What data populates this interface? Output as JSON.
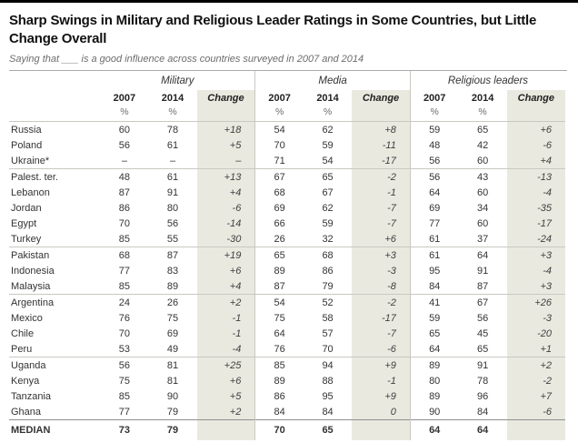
{
  "chart_data": {
    "type": "table",
    "title": "Sharp Swings in Military and Religious Leader Ratings in Some Countries, but Little Change Overall",
    "subtitle": "Saying that ___ is a good influence across countries surveyed in 2007 and 2014",
    "column_groups": [
      {
        "label": "Military"
      },
      {
        "label": "Media"
      },
      {
        "label": "Religious leaders"
      }
    ],
    "sub_columns": [
      "2007",
      "2014",
      "Change"
    ],
    "unit": "%",
    "rows": [
      {
        "country": "Russia",
        "section_start": false,
        "values": [
          "60",
          "78",
          "+18",
          "54",
          "62",
          "+8",
          "59",
          "65",
          "+6"
        ]
      },
      {
        "country": "Poland",
        "section_start": false,
        "values": [
          "56",
          "61",
          "+5",
          "70",
          "59",
          "-11",
          "48",
          "42",
          "-6"
        ]
      },
      {
        "country": "Ukraine*",
        "section_start": false,
        "values": [
          "–",
          "–",
          "–",
          "71",
          "54",
          "-17",
          "56",
          "60",
          "+4"
        ]
      },
      {
        "country": "Palest. ter.",
        "section_start": true,
        "values": [
          "48",
          "61",
          "+13",
          "67",
          "65",
          "-2",
          "56",
          "43",
          "-13"
        ]
      },
      {
        "country": "Lebanon",
        "section_start": false,
        "values": [
          "87",
          "91",
          "+4",
          "68",
          "67",
          "-1",
          "64",
          "60",
          "-4"
        ]
      },
      {
        "country": "Jordan",
        "section_start": false,
        "values": [
          "86",
          "80",
          "-6",
          "69",
          "62",
          "-7",
          "69",
          "34",
          "-35"
        ]
      },
      {
        "country": "Egypt",
        "section_start": false,
        "values": [
          "70",
          "56",
          "-14",
          "66",
          "59",
          "-7",
          "77",
          "60",
          "-17"
        ]
      },
      {
        "country": "Turkey",
        "section_start": false,
        "values": [
          "85",
          "55",
          "-30",
          "26",
          "32",
          "+6",
          "61",
          "37",
          "-24"
        ]
      },
      {
        "country": "Pakistan",
        "section_start": true,
        "values": [
          "68",
          "87",
          "+19",
          "65",
          "68",
          "+3",
          "61",
          "64",
          "+3"
        ]
      },
      {
        "country": "Indonesia",
        "section_start": false,
        "values": [
          "77",
          "83",
          "+6",
          "89",
          "86",
          "-3",
          "95",
          "91",
          "-4"
        ]
      },
      {
        "country": "Malaysia",
        "section_start": false,
        "values": [
          "85",
          "89",
          "+4",
          "87",
          "79",
          "-8",
          "84",
          "87",
          "+3"
        ]
      },
      {
        "country": "Argentina",
        "section_start": true,
        "values": [
          "24",
          "26",
          "+2",
          "54",
          "52",
          "-2",
          "41",
          "67",
          "+26"
        ]
      },
      {
        "country": "Mexico",
        "section_start": false,
        "values": [
          "76",
          "75",
          "-1",
          "75",
          "58",
          "-17",
          "59",
          "56",
          "-3"
        ]
      },
      {
        "country": "Chile",
        "section_start": false,
        "values": [
          "70",
          "69",
          "-1",
          "64",
          "57",
          "-7",
          "65",
          "45",
          "-20"
        ]
      },
      {
        "country": "Peru",
        "section_start": false,
        "values": [
          "53",
          "49",
          "-4",
          "76",
          "70",
          "-6",
          "64",
          "65",
          "+1"
        ]
      },
      {
        "country": "Uganda",
        "section_start": true,
        "values": [
          "56",
          "81",
          "+25",
          "85",
          "94",
          "+9",
          "89",
          "91",
          "+2"
        ]
      },
      {
        "country": "Kenya",
        "section_start": false,
        "values": [
          "75",
          "81",
          "+6",
          "89",
          "88",
          "-1",
          "80",
          "78",
          "-2"
        ]
      },
      {
        "country": "Tanzania",
        "section_start": false,
        "values": [
          "85",
          "90",
          "+5",
          "86",
          "95",
          "+9",
          "89",
          "96",
          "+7"
        ]
      },
      {
        "country": "Ghana",
        "section_start": false,
        "values": [
          "77",
          "79",
          "+2",
          "84",
          "84",
          "0",
          "90",
          "84",
          "-6"
        ]
      }
    ],
    "median_row": {
      "country": "MEDIAN",
      "values": [
        "73",
        "79",
        "",
        "70",
        "65",
        "",
        "64",
        "64",
        ""
      ]
    }
  },
  "style": {
    "change_column_shade": "#e9e9e0",
    "rule_color": "#c9c9c2"
  }
}
